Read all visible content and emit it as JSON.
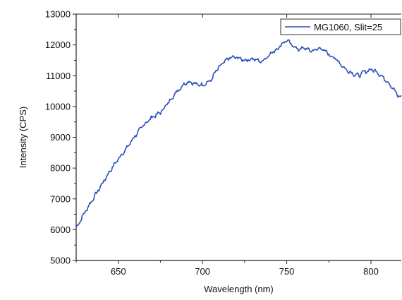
{
  "chart_data": {
    "type": "line",
    "xlabel": "Wavelength (nm)",
    "ylabel": "Intensity (CPS)",
    "xlim": [
      625,
      818
    ],
    "ylim": [
      5000,
      13000
    ],
    "x_ticks": [
      650,
      700,
      750,
      800
    ],
    "y_ticks": [
      5000,
      6000,
      7000,
      8000,
      9000,
      10000,
      11000,
      12000,
      13000
    ],
    "grid": false,
    "legend_position": "top-right",
    "series": [
      {
        "name": "MG1060, Slit=25",
        "color": "#2b4fb8",
        "x": [
          625,
          630,
          635,
          640,
          645,
          650,
          655,
          660,
          665,
          670,
          675,
          680,
          685,
          690,
          693,
          696,
          700,
          705,
          708,
          712,
          716,
          720,
          725,
          730,
          735,
          740,
          745,
          748,
          750,
          753,
          757,
          760,
          765,
          770,
          775,
          780,
          785,
          790,
          793,
          795,
          800,
          803,
          806,
          810,
          813,
          816,
          818
        ],
        "values": [
          6050,
          6550,
          7000,
          7450,
          7900,
          8300,
          8650,
          9050,
          9400,
          9650,
          9800,
          10150,
          10500,
          10780,
          10800,
          10720,
          10700,
          10850,
          11150,
          11400,
          11580,
          11600,
          11500,
          11550,
          11450,
          11700,
          11900,
          12080,
          12150,
          12000,
          11850,
          11900,
          11800,
          11900,
          11700,
          11500,
          11200,
          11050,
          11000,
          11100,
          11200,
          11150,
          11000,
          10800,
          10600,
          10350,
          10300
        ]
      }
    ]
  }
}
